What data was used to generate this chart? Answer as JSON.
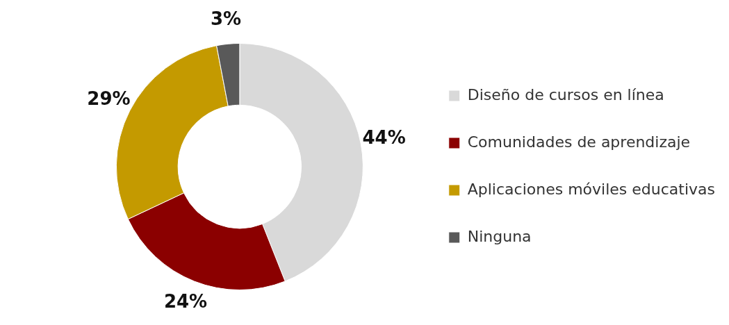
{
  "chart_data": {
    "type": "donut",
    "categories": [
      "Diseño de cursos en línea",
      "Comunidades de aprendizaje",
      "Aplicaciones móviles educativas",
      "Ninguna"
    ],
    "values": [
      44,
      24,
      29,
      3
    ],
    "colors": [
      "#d9d9d9",
      "#8b0000",
      "#c49a00",
      "#595959"
    ],
    "value_labels": [
      "44%",
      "24%",
      "29%",
      "3%"
    ],
    "legend": "right"
  }
}
